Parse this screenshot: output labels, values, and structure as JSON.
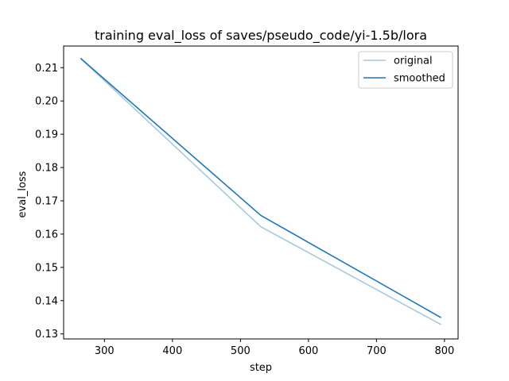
{
  "chart_data": {
    "type": "line",
    "title": "training eval_loss of saves/pseudo_code/yi-1.5b/lora",
    "xlabel": "step",
    "ylabel": "eval_loss",
    "xlim": [
      240,
      820
    ],
    "ylim": [
      0.1285,
      0.2165
    ],
    "xticks": [
      300,
      400,
      500,
      600,
      700,
      800
    ],
    "yticks": [
      0.13,
      0.14,
      0.15,
      0.16,
      0.17,
      0.18,
      0.19,
      0.2,
      0.21
    ],
    "ytick_labels": [
      "0.13",
      "0.14",
      "0.15",
      "0.16",
      "0.17",
      "0.18",
      "0.19",
      "0.20",
      "0.21"
    ],
    "grid": false,
    "legend_position": "upper right",
    "series": [
      {
        "name": "original",
        "color": "#a6c8e0",
        "x": [
          265,
          530,
          795
        ],
        "y": [
          0.2128,
          0.1622,
          0.1328
        ]
      },
      {
        "name": "smoothed",
        "color": "#1f77b4",
        "x": [
          265,
          530,
          795
        ],
        "y": [
          0.2128,
          0.1656,
          0.1349
        ]
      }
    ]
  }
}
